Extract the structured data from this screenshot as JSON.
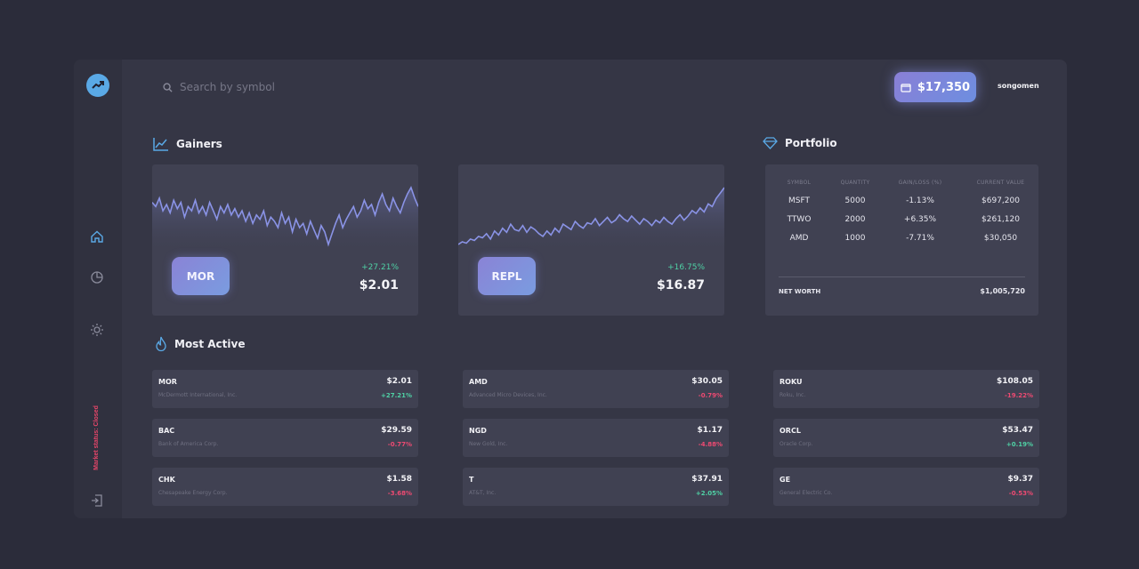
{
  "colors": {
    "accent": "#5aa9e6",
    "positive": "#4fd1a5",
    "negative": "#ee4a72",
    "chart_line": "#8a93e6"
  },
  "sidebar": {
    "logo": "trending-up-icon",
    "items": [
      {
        "icon": "home-icon"
      },
      {
        "icon": "pie-chart-icon"
      },
      {
        "icon": "sun-icon"
      }
    ],
    "market_status": "Market status: Closed",
    "logout_icon": "logout-icon"
  },
  "header": {
    "search_placeholder": "Search by symbol",
    "balance": "$17,350",
    "username": "songomen"
  },
  "gainers": {
    "title": "Gainers",
    "cards": [
      {
        "symbol": "MOR",
        "change": "+27.21%",
        "price": "$2.01",
        "chart_data": {
          "type": "area",
          "values": [
            62,
            60,
            64,
            58,
            61,
            57,
            63,
            59,
            62,
            55,
            60,
            58,
            63,
            57,
            60,
            56,
            62,
            58,
            54,
            60,
            57,
            61,
            56,
            59,
            55,
            58,
            53,
            57,
            52,
            56,
            54,
            58,
            51,
            55,
            53,
            50,
            57,
            52,
            55,
            48,
            54,
            50,
            52,
            47,
            53,
            49,
            45,
            51,
            48,
            42,
            47,
            52,
            56,
            50,
            54,
            57,
            60,
            55,
            58,
            63,
            59,
            61,
            56,
            62,
            66,
            61,
            58,
            64,
            60,
            57,
            62,
            66,
            69,
            64,
            60
          ]
        }
      },
      {
        "symbol": "REPL",
        "change": "+16.75%",
        "price": "$16.87",
        "chart_data": {
          "type": "area",
          "values": [
            40,
            42,
            41,
            44,
            43,
            46,
            45,
            48,
            44,
            50,
            47,
            52,
            49,
            55,
            51,
            50,
            54,
            49,
            53,
            51,
            48,
            46,
            50,
            47,
            52,
            49,
            55,
            53,
            51,
            57,
            54,
            52,
            56,
            55,
            59,
            54,
            57,
            60,
            56,
            58,
            62,
            59,
            57,
            61,
            58,
            55,
            59,
            57,
            54,
            58,
            56,
            60,
            57,
            55,
            59,
            62,
            58,
            61,
            65,
            63,
            67,
            64,
            70,
            68,
            74,
            78,
            82
          ]
        }
      }
    ]
  },
  "portfolio": {
    "title": "Portfolio",
    "columns": [
      "SYMBOL",
      "QUANTITY",
      "GAIN/LOSS (%)",
      "CURRENT VALUE"
    ],
    "rows": [
      {
        "symbol": "MSFT",
        "quantity": "5000",
        "gain": "-1.13%",
        "value": "$697,200",
        "trend": "neg"
      },
      {
        "symbol": "TTWO",
        "quantity": "2000",
        "gain": "+6.35%",
        "value": "$261,120",
        "trend": "pos"
      },
      {
        "symbol": "AMD",
        "quantity": "1000",
        "gain": "-7.71%",
        "value": "$30,050",
        "trend": "neg"
      }
    ],
    "net_worth_label": "NET WORTH",
    "net_worth_value": "$1,005,720"
  },
  "most_active": {
    "title": "Most Active",
    "items": [
      {
        "symbol": "MOR",
        "name": "McDermott International, Inc.",
        "price": "$2.01",
        "change": "+27.21%",
        "trend": "pos"
      },
      {
        "symbol": "AMD",
        "name": "Advanced Micro Devices, Inc.",
        "price": "$30.05",
        "change": "-0.79%",
        "trend": "neg"
      },
      {
        "symbol": "ROKU",
        "name": "Roku, Inc.",
        "price": "$108.05",
        "change": "-19.22%",
        "trend": "neg"
      },
      {
        "symbol": "BAC",
        "name": "Bank of America Corp.",
        "price": "$29.59",
        "change": "-0.77%",
        "trend": "neg"
      },
      {
        "symbol": "NGD",
        "name": "New Gold, Inc.",
        "price": "$1.17",
        "change": "-4.88%",
        "trend": "neg"
      },
      {
        "symbol": "ORCL",
        "name": "Oracle Corp.",
        "price": "$53.47",
        "change": "+0.19%",
        "trend": "pos"
      },
      {
        "symbol": "CHK",
        "name": "Chesapeake Energy Corp.",
        "price": "$1.58",
        "change": "-3.68%",
        "trend": "neg"
      },
      {
        "symbol": "T",
        "name": "AT&T, Inc.",
        "price": "$37.91",
        "change": "+2.05%",
        "trend": "pos"
      },
      {
        "symbol": "GE",
        "name": "General Electric Co.",
        "price": "$9.37",
        "change": "-0.53%",
        "trend": "neg"
      }
    ]
  }
}
